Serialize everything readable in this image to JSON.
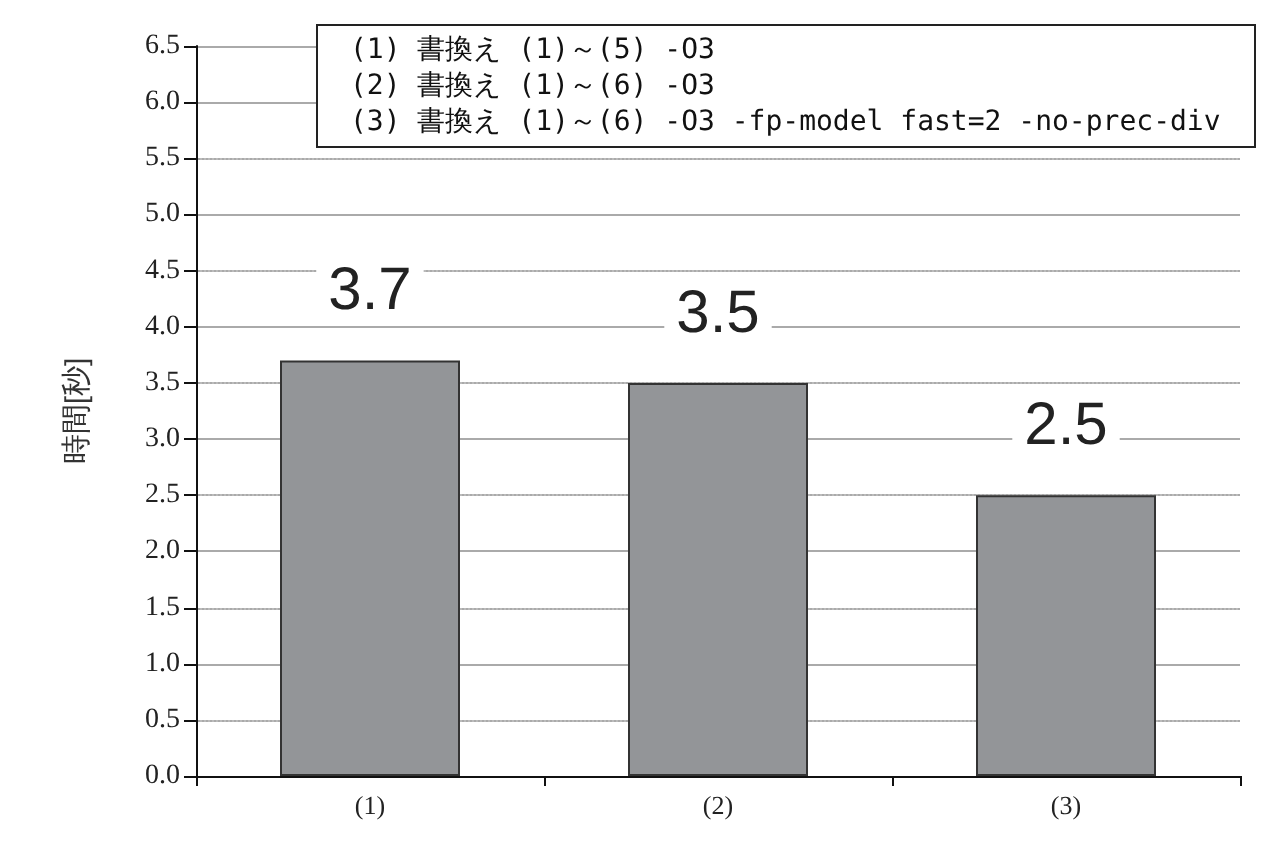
{
  "chart_data": {
    "type": "bar",
    "ylabel": "時間[秒]",
    "categories": [
      "(1)",
      "(2)",
      "(3)"
    ],
    "values": [
      3.7,
      3.5,
      2.5
    ],
    "color": "#939598",
    "data_labels": true,
    "ylim": [
      0,
      6.5
    ],
    "yticks": [
      {
        "value": 0,
        "label": "0.0"
      },
      0.5,
      {
        "value": 1,
        "label": "1.0"
      },
      1.5,
      {
        "value": 2,
        "label": "2.0"
      },
      2.5,
      {
        "value": 3,
        "label": "3.0"
      },
      3.5,
      {
        "value": 4,
        "label": "4.0"
      },
      4.5,
      {
        "value": 5,
        "label": "5.0"
      },
      5.5,
      {
        "value": 6,
        "label": "6.0"
      },
      6.5
    ],
    "grid": "y",
    "annotations": [
      "(1) 書換え (1)～(5) -O3",
      "(2) 書換え (1)～(6) -O3",
      "(3) 書換え (1)～(6) -O3 -fp-model fast=2 -no-prec-div"
    ]
  }
}
